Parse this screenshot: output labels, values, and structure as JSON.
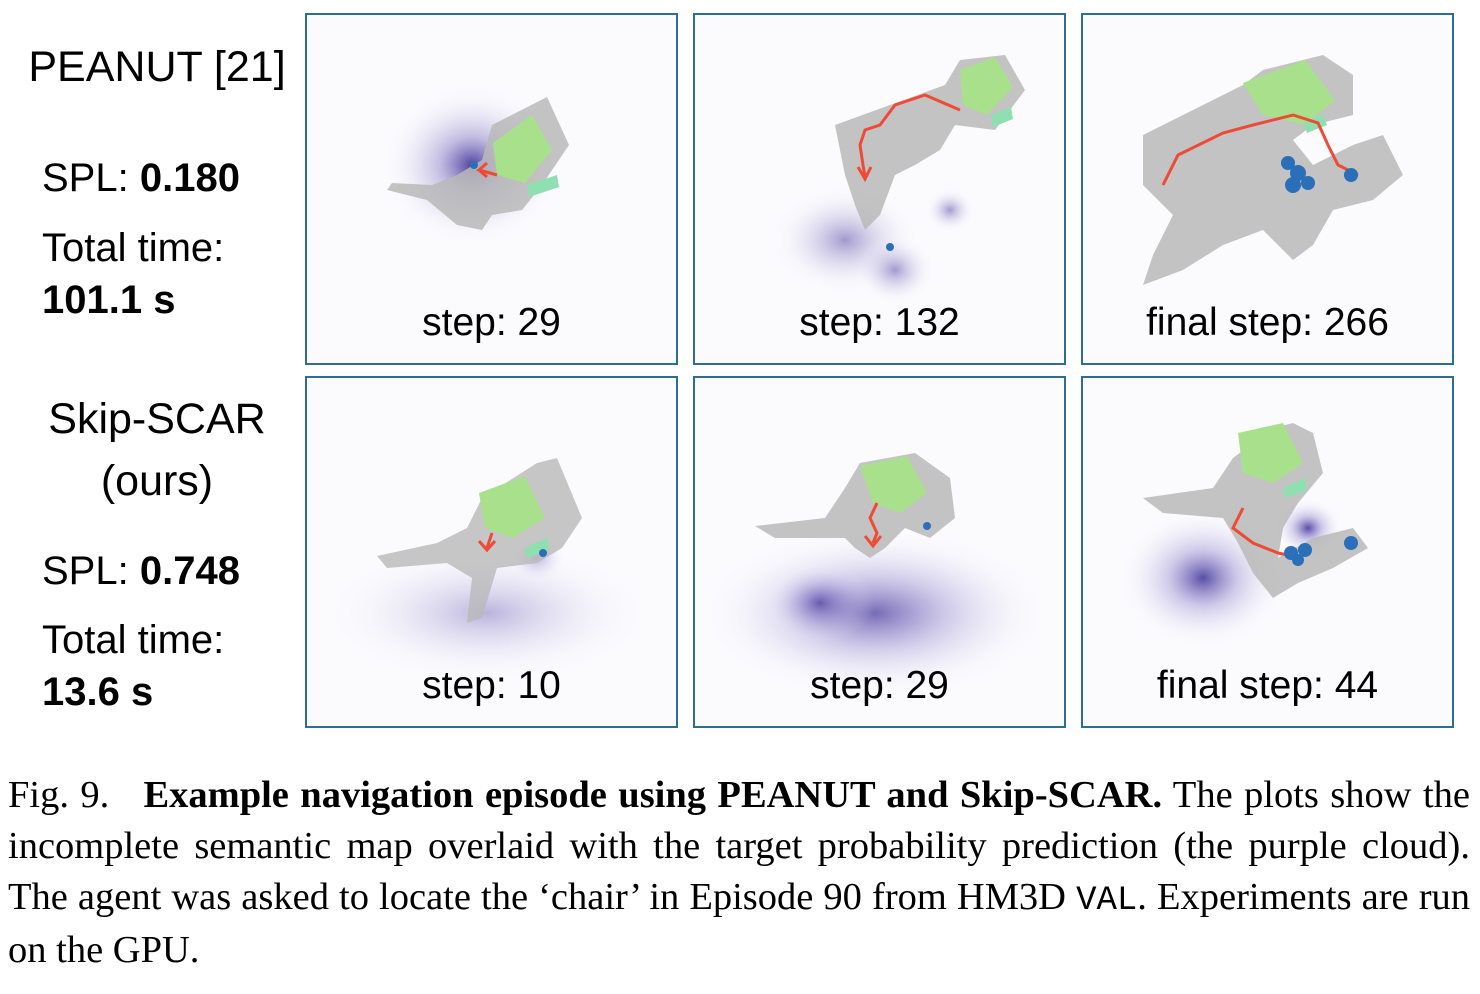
{
  "rows": [
    {
      "method_lines": [
        "PEANUT [21]"
      ],
      "spl_label": "SPL:",
      "spl_value": "0.180",
      "time_label": "Total time:",
      "time_value": "101.1 s",
      "panels": [
        {
          "label": "step: 29"
        },
        {
          "label": "step: 132"
        },
        {
          "label": "final step: 266"
        }
      ]
    },
    {
      "method_lines": [
        "Skip-SCAR",
        "(ours)"
      ],
      "spl_label": "SPL:",
      "spl_value": "0.748",
      "time_label": "Total time:",
      "time_value": "13.6 s",
      "panels": [
        {
          "label": "step: 10"
        },
        {
          "label": "step: 29"
        },
        {
          "label": "final step: 44"
        }
      ]
    }
  ],
  "caption": {
    "figure_number": "Fig. 9.",
    "title": "Example navigation episode using PEANUT and Skip-SCAR.",
    "text_before_code": "The plots show the incomplete semantic map overlaid with the target probability prediction (the purple cloud). The agent was asked to locate the ‘chair’ in Episode 90 from HM3D",
    "code": "VAL",
    "text_after_code": ". Experiments are run on the GPU."
  },
  "colors": {
    "panel_border": "#2e6f8f",
    "probability_cloud": "#5a4aa8",
    "explored_area": "#b9b9b9",
    "target_region": "#a9e08c",
    "agent_path": "#ee4a36",
    "detected_chair": "#2a6fb8"
  }
}
